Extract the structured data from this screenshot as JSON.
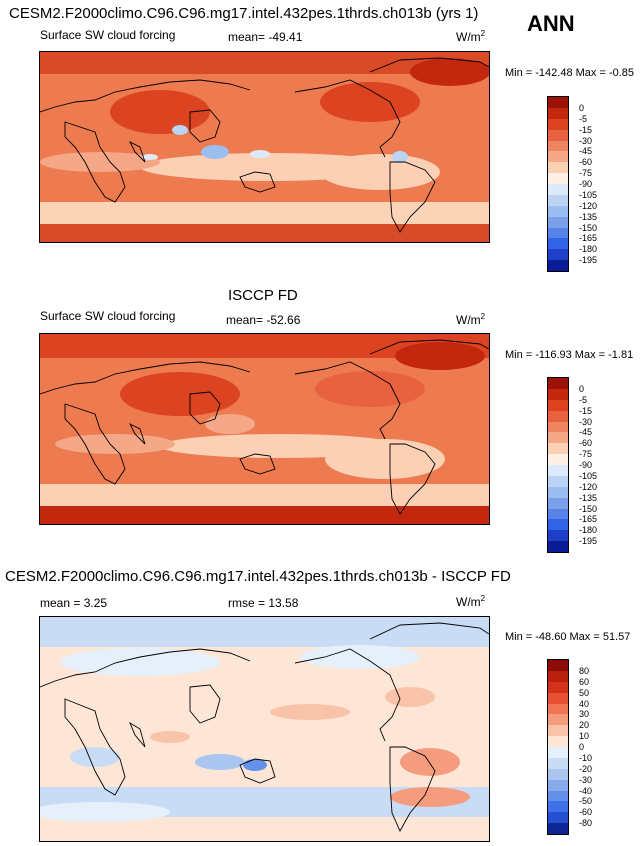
{
  "season": "ANN",
  "panels": [
    {
      "title": "CESM2.F2000climo.C96.C96.mg17.intel.432pes.1thrds.ch013b (yrs 1)",
      "variable": "Surface SW cloud forcing",
      "stat": "mean= -49.41",
      "units_base": "W/m",
      "units_exp": "2",
      "minmax": "Min = -142.48 Max =  -0.85",
      "colorbar": {
        "labels": [
          "0",
          "-5",
          "-15",
          "-30",
          "-45",
          "-60",
          "-75",
          "-90",
          "-105",
          "-120",
          "-135",
          "-150",
          "-165",
          "-180",
          "-195"
        ],
        "colors": [
          "#9b1306",
          "#c3270d",
          "#dc4321",
          "#e8623f",
          "#ef8460",
          "#f5a887",
          "#fbd0b5",
          "#fdf0e4",
          "#dceaf9",
          "#bcd4f3",
          "#9cbdef",
          "#7aa0ea",
          "#5782e7",
          "#3262e6",
          "#1e3fc8",
          "#0a1d94"
        ]
      }
    },
    {
      "title": "ISCCP FD",
      "variable": "Surface SW cloud forcing",
      "stat": "mean= -52.66",
      "units_base": "W/m",
      "units_exp": "2",
      "minmax": "Min = -116.93 Max =  -1.81",
      "colorbar": {
        "labels": [
          "0",
          "-5",
          "-15",
          "-30",
          "-45",
          "-60",
          "-75",
          "-90",
          "-105",
          "-120",
          "-135",
          "-150",
          "-165",
          "-180",
          "-195"
        ],
        "colors": [
          "#9b1306",
          "#c3270d",
          "#dc4321",
          "#e8623f",
          "#ef8460",
          "#f5a887",
          "#fbd0b5",
          "#fdf0e4",
          "#dceaf9",
          "#bcd4f3",
          "#9cbdef",
          "#7aa0ea",
          "#5782e7",
          "#3262e6",
          "#1e3fc8",
          "#0a1d94"
        ]
      }
    },
    {
      "title": "CESM2.F2000climo.C96.C96.mg17.intel.432pes.1thrds.ch013b - ISCCP FD",
      "stat_left": "mean =   3.25",
      "stat": "rmse =  13.58",
      "units_base": "W/m",
      "units_exp": "2",
      "minmax": "Min = -48.60 Max =  51.57",
      "colorbar": {
        "labels": [
          "80",
          "60",
          "50",
          "40",
          "30",
          "20",
          "10",
          "0",
          "-10",
          "-20",
          "-30",
          "-40",
          "-50",
          "-60",
          "-80"
        ],
        "colors": [
          "#8c0d06",
          "#b81f0c",
          "#d4321b",
          "#e65134",
          "#f07655",
          "#f59c7e",
          "#f9c3a9",
          "#fde6d6",
          "#e6f0fb",
          "#c9dcf5",
          "#a9c5f0",
          "#86aaeb",
          "#6390e8",
          "#3f72e6",
          "#2650d2",
          "#0c2794"
        ]
      }
    }
  ]
}
